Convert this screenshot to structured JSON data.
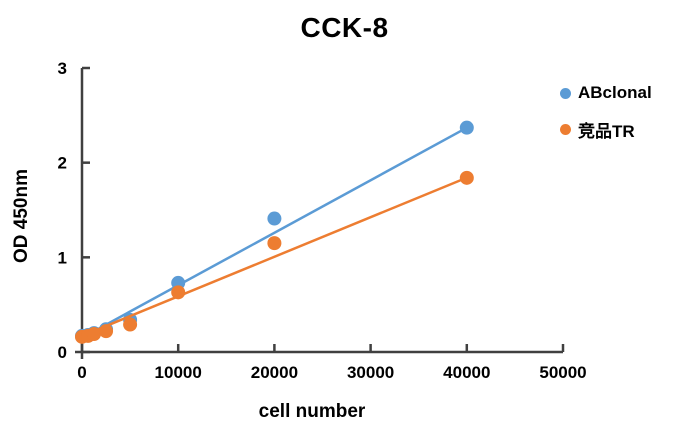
{
  "chart_data": {
    "type": "scatter",
    "title": "CCK-8",
    "xlabel": "cell number",
    "ylabel": "OD 450nm",
    "xlim": [
      0,
      50000
    ],
    "ylim": [
      0,
      3
    ],
    "xticks": [
      0,
      10000,
      20000,
      30000,
      40000,
      50000
    ],
    "yticks": [
      0,
      1,
      2,
      3
    ],
    "x": [
      0,
      625,
      1250,
      2500,
      5000,
      10000,
      20000,
      40000
    ],
    "series": [
      {
        "name": "ABclonal",
        "color": "#5B9BD5",
        "values": [
          0.17,
          0.18,
          0.2,
          0.24,
          0.34,
          0.73,
          1.41,
          2.37
        ],
        "trendline": {
          "x": [
            0,
            40200
          ],
          "y": [
            0.15,
            2.38
          ]
        }
      },
      {
        "name": "竞品TR",
        "color": "#ED7D31",
        "values": [
          0.16,
          0.17,
          0.19,
          0.22,
          0.29,
          0.63,
          1.15,
          1.84
        ],
        "trendline": {
          "x": [
            0,
            40200
          ],
          "y": [
            0.17,
            1.85
          ]
        }
      }
    ],
    "legend_position": "right",
    "grid": false,
    "axis_color": "#404040"
  }
}
